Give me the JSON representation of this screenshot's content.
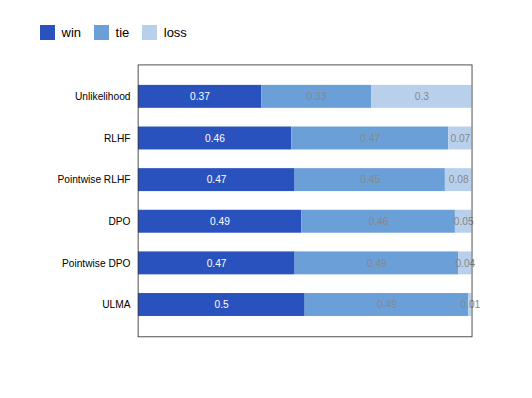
{
  "chart_data": {
    "type": "bar",
    "orientation": "horizontal",
    "stacked": true,
    "categories": [
      "Unlikelihood",
      "RLHF",
      "Pointwise RLHF",
      "DPO",
      "Pointwise DPO",
      "ULMA"
    ],
    "series": [
      {
        "name": "win",
        "color": "#2a52be",
        "values": [
          0.37,
          0.46,
          0.47,
          0.49,
          0.47,
          0.5
        ]
      },
      {
        "name": "tie",
        "color": "#6a9fd8",
        "values": [
          0.33,
          0.47,
          0.45,
          0.46,
          0.49,
          0.49
        ]
      },
      {
        "name": "loss",
        "color": "#b8d0ec",
        "values": [
          0.3,
          0.07,
          0.08,
          0.05,
          0.04,
          0.01
        ]
      }
    ],
    "xlim": [
      0,
      1.0
    ],
    "xticks": [],
    "data_labels": true,
    "tick_labels": "y",
    "legend": "top"
  }
}
